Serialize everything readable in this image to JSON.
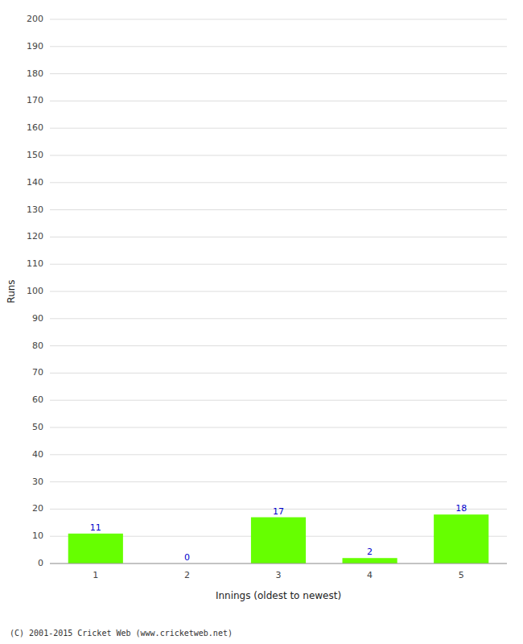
{
  "chart_data": {
    "type": "bar",
    "categories": [
      "1",
      "2",
      "3",
      "4",
      "5"
    ],
    "values": [
      11,
      0,
      17,
      2,
      18
    ],
    "color": "#66ff00",
    "xlabel": "Innings (oldest to newest)",
    "ylabel": "Runs",
    "ylim": [
      0,
      200
    ],
    "yticks": [
      0,
      10,
      20,
      30,
      40,
      50,
      60,
      70,
      80,
      90,
      100,
      110,
      120,
      130,
      140,
      150,
      160,
      170,
      180,
      190,
      200
    ],
    "grid": true,
    "data_labels": true,
    "annotations": [
      "(C) 2001-2015 Cricket Web (www.cricketweb.net)"
    ]
  }
}
